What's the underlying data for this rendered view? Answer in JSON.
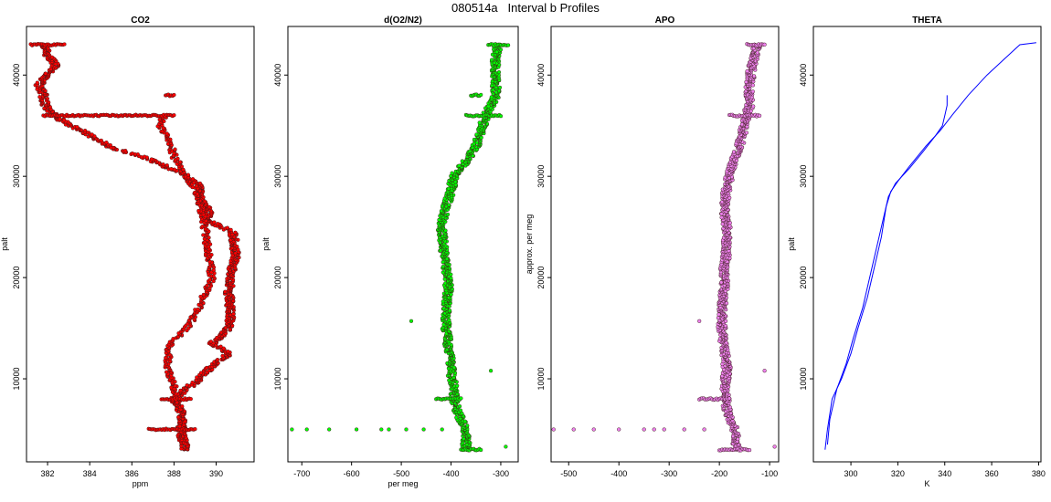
{
  "figure_title": "080514a   Interval b Profiles",
  "chart_data": [
    {
      "type": "scatter",
      "title": "CO2",
      "xlabel": "ppm",
      "ylabel": "palt",
      "xlim": [
        381,
        391.8
      ],
      "ylim": [
        1800,
        44800
      ],
      "xticks": [
        382,
        384,
        386,
        388,
        390
      ],
      "yticks": [
        10000,
        20000,
        30000,
        40000
      ],
      "point_color": "#ff0000",
      "profile": [
        [
          388.6,
          3000
        ],
        [
          388.3,
          4500
        ],
        [
          388.4,
          6500
        ],
        [
          388.0,
          8000
        ],
        [
          389.2,
          10000
        ],
        [
          389.9,
          11500
        ],
        [
          390.6,
          12500
        ],
        [
          389.8,
          13500
        ],
        [
          390.6,
          15000
        ],
        [
          390.7,
          16500
        ],
        [
          390.6,
          18500
        ],
        [
          390.7,
          20500
        ],
        [
          390.9,
          22000
        ],
        [
          390.9,
          23000
        ],
        [
          390.8,
          24500
        ],
        [
          389.7,
          25500
        ],
        [
          389.6,
          27000
        ],
        [
          389.2,
          28000
        ],
        [
          389.3,
          29000
        ],
        [
          388.6,
          30000
        ],
        [
          387.6,
          31000
        ],
        [
          386.5,
          32000
        ],
        [
          385.0,
          32800
        ],
        [
          384.5,
          33500
        ],
        [
          383.8,
          34300
        ],
        [
          383.1,
          35000
        ],
        [
          382.3,
          36000
        ],
        [
          381.9,
          37000
        ],
        [
          381.8,
          38000
        ],
        [
          381.6,
          39000
        ],
        [
          382.0,
          40000
        ],
        [
          382.4,
          41000
        ],
        [
          382.0,
          42000
        ],
        [
          381.8,
          43000
        ]
      ],
      "profile2": [
        [
          388.5,
          3000
        ],
        [
          388.4,
          5500
        ],
        [
          388.2,
          8000
        ],
        [
          387.7,
          11000
        ],
        [
          387.8,
          13500
        ],
        [
          388.6,
          15000
        ],
        [
          389.2,
          17000
        ],
        [
          389.8,
          20000
        ],
        [
          389.6,
          23000
        ],
        [
          389.4,
          26000
        ],
        [
          389.1,
          28500
        ],
        [
          388.6,
          30000
        ],
        [
          388.0,
          32000
        ],
        [
          387.8,
          33500
        ],
        [
          387.3,
          35000
        ],
        [
          387.6,
          36000
        ]
      ],
      "segments": [
        [
          [
            381.2,
            43000
          ],
          [
            382.8,
            43000
          ]
        ],
        [
          [
            381.8,
            36000
          ],
          [
            388.0,
            36000
          ]
        ],
        [
          [
            387.6,
            38000
          ],
          [
            388.0,
            38000
          ]
        ],
        [
          [
            386.8,
            5000
          ],
          [
            389.0,
            5000
          ]
        ],
        [
          [
            387.4,
            8000
          ],
          [
            388.8,
            8000
          ]
        ]
      ]
    },
    {
      "type": "scatter",
      "title": "d(O2/N2)",
      "xlabel": "per meg",
      "ylabel": "palt",
      "xlim": [
        -728,
        -265
      ],
      "ylim": [
        1800,
        44800
      ],
      "xticks": [
        -700,
        -600,
        -500,
        -400,
        -300
      ],
      "yticks": [
        10000,
        20000,
        30000,
        40000
      ],
      "point_color": "#00ff00",
      "profile": [
        [
          -370,
          3000
        ],
        [
          -370,
          5000
        ],
        [
          -390,
          7000
        ],
        [
          -395,
          9000
        ],
        [
          -400,
          11000
        ],
        [
          -405,
          13000
        ],
        [
          -410,
          15000
        ],
        [
          -410,
          17000
        ],
        [
          -405,
          19000
        ],
        [
          -410,
          21000
        ],
        [
          -415,
          23000
        ],
        [
          -420,
          25000
        ],
        [
          -410,
          27000
        ],
        [
          -400,
          28500
        ],
        [
          -395,
          30000
        ],
        [
          -370,
          31500
        ],
        [
          -350,
          33000
        ],
        [
          -340,
          34500
        ],
        [
          -330,
          36000
        ],
        [
          -310,
          38000
        ],
        [
          -310,
          40000
        ],
        [
          -310,
          42000
        ],
        [
          -305,
          43000
        ]
      ],
      "segments": [
        [
          [
            -430,
            8000
          ],
          [
            -380,
            8000
          ]
        ],
        [
          [
            -370,
            36000
          ],
          [
            -300,
            36000
          ]
        ],
        [
          [
            -325,
            43000
          ],
          [
            -285,
            43000
          ]
        ],
        [
          [
            -360,
            38000
          ],
          [
            -340,
            38000
          ]
        ],
        [
          [
            -380,
            3000
          ],
          [
            -340,
            3000
          ]
        ]
      ],
      "outliers": [
        [
          -720,
          5000
        ],
        [
          -690,
          5000
        ],
        [
          -645,
          5000
        ],
        [
          -590,
          5000
        ],
        [
          -540,
          5000
        ],
        [
          -525,
          5000
        ],
        [
          -490,
          5000
        ],
        [
          -455,
          5000
        ],
        [
          -418,
          5000
        ],
        [
          -290,
          3300
        ],
        [
          -320,
          10800
        ],
        [
          -480,
          15700
        ]
      ]
    },
    {
      "type": "scatter",
      "title": "APO",
      "xlabel": "",
      "ylabel": "approx. per meg",
      "xlim": [
        -535,
        -82
      ],
      "ylim": [
        1800,
        44800
      ],
      "xticks": [
        -500,
        -400,
        -300,
        -200,
        -100
      ],
      "yticks": [
        10000,
        20000,
        30000,
        40000
      ],
      "point_color": "#ee82ee",
      "profile": [
        [
          -165,
          3000
        ],
        [
          -170,
          5000
        ],
        [
          -185,
          7000
        ],
        [
          -190,
          9000
        ],
        [
          -185,
          11000
        ],
        [
          -190,
          13000
        ],
        [
          -195,
          15000
        ],
        [
          -195,
          17000
        ],
        [
          -190,
          19000
        ],
        [
          -190,
          21000
        ],
        [
          -185,
          23000
        ],
        [
          -185,
          25000
        ],
        [
          -190,
          27000
        ],
        [
          -185,
          29000
        ],
        [
          -175,
          31000
        ],
        [
          -160,
          33000
        ],
        [
          -150,
          35000
        ],
        [
          -140,
          37000
        ],
        [
          -140,
          39000
        ],
        [
          -135,
          41000
        ],
        [
          -125,
          43000
        ]
      ],
      "segments": [
        [
          [
            -240,
            8000
          ],
          [
            -180,
            8000
          ]
        ],
        [
          [
            -180,
            36000
          ],
          [
            -120,
            36000
          ]
        ],
        [
          [
            -145,
            43000
          ],
          [
            -110,
            43000
          ]
        ],
        [
          [
            -200,
            3000
          ],
          [
            -140,
            3000
          ]
        ]
      ],
      "outliers": [
        [
          -530,
          5000
        ],
        [
          -490,
          5000
        ],
        [
          -450,
          5000
        ],
        [
          -400,
          5000
        ],
        [
          -350,
          5000
        ],
        [
          -330,
          5000
        ],
        [
          -310,
          5000
        ],
        [
          -270,
          5000
        ],
        [
          -230,
          5000
        ],
        [
          -90,
          3300
        ],
        [
          -110,
          10800
        ],
        [
          -240,
          15700
        ]
      ]
    },
    {
      "type": "line",
      "title": "THETA",
      "xlabel": "K",
      "ylabel": "palt",
      "xlim": [
        284,
        381
      ],
      "ylim": [
        1800,
        44800
      ],
      "xticks": [
        300,
        320,
        340,
        360,
        380
      ],
      "yticks": [
        10000,
        20000,
        30000,
        40000
      ],
      "line_color": "#0000ff",
      "series": [
        {
          "points": [
            [
              289,
              3000
            ],
            [
              290,
              5000
            ],
            [
              292,
              8000
            ],
            [
              296,
              10000
            ],
            [
              300,
              12500
            ],
            [
              303,
              15000
            ],
            [
              307,
              18000
            ],
            [
              310,
              21000
            ],
            [
              313,
              24000
            ],
            [
              315,
              27000
            ],
            [
              317,
              28500
            ],
            [
              320,
              29500
            ],
            [
              325,
              31000
            ],
            [
              332,
              33000
            ],
            [
              338,
              34500
            ],
            [
              343,
              36000
            ],
            [
              350,
              38000
            ],
            [
              358,
              40000
            ],
            [
              365,
              41500
            ],
            [
              372,
              43000
            ],
            [
              379,
              43200
            ]
          ]
        },
        {
          "points": [
            [
              290,
              3500
            ],
            [
              291,
              6000
            ],
            [
              294,
              9000
            ],
            [
              298,
              11500
            ],
            [
              301,
              14000
            ],
            [
              305,
              17000
            ],
            [
              308,
              20000
            ],
            [
              311,
              23000
            ],
            [
              314,
              26000
            ],
            [
              316,
              28000
            ],
            [
              319,
              29300
            ],
            [
              325,
              30800
            ],
            [
              331,
              32500
            ],
            [
              336,
              34000
            ],
            [
              339,
              35000
            ],
            [
              340,
              36000
            ],
            [
              341,
              37000
            ],
            [
              341,
              38000
            ]
          ]
        }
      ]
    }
  ]
}
